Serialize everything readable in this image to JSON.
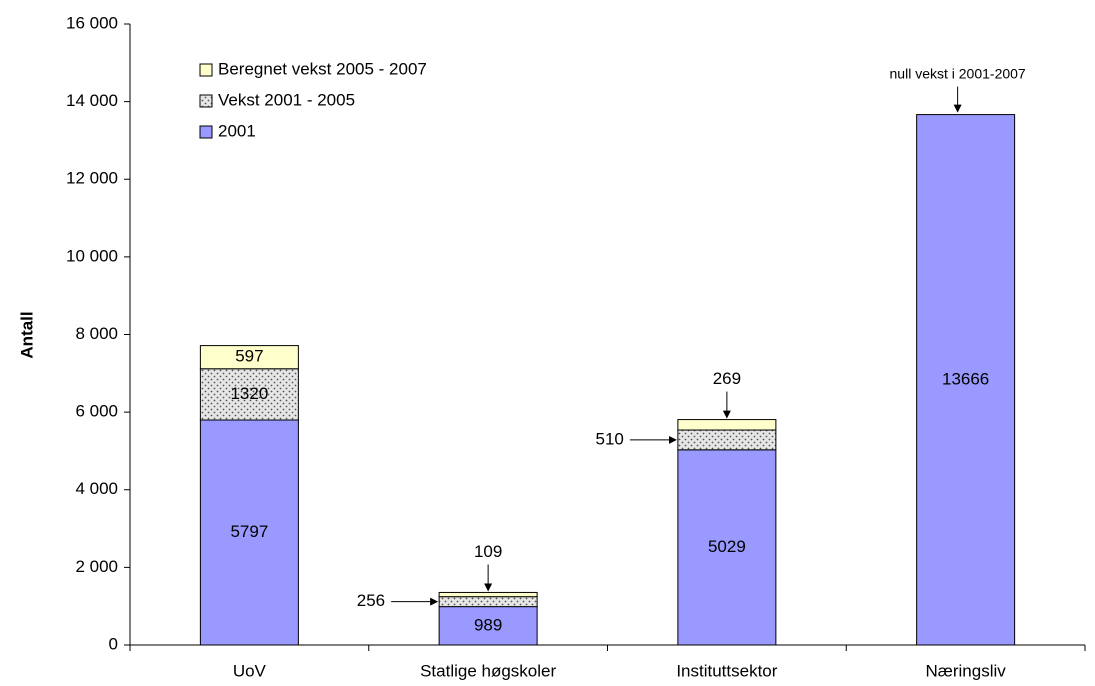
{
  "chart_data": {
    "type": "stacked_bar",
    "y_label": "Antall",
    "categories": [
      "UoV",
      "Statlige høgskoler",
      "Instituttsektor",
      "Næringsliv"
    ],
    "series": [
      {
        "name": "2001",
        "color": "#9999ff",
        "values": [
          5797,
          989,
          5029,
          13666
        ]
      },
      {
        "name": "Vekst 2001 - 2005",
        "color": "#e6e6e6",
        "values": [
          1320,
          256,
          510,
          0
        ]
      },
      {
        "name": "Beregnet vekst 2005 - 2007",
        "color": "#ffffcc",
        "values": [
          597,
          109,
          269,
          0
        ]
      }
    ],
    "annotation": "null vekst i 2001-2007",
    "ylim": [
      0,
      16000
    ],
    "yticks": [
      0,
      {
        "value": 2000,
        "label": "2 000"
      },
      {
        "value": 4000,
        "label": "4 000"
      },
      {
        "value": 6000,
        "label": "6 000"
      },
      {
        "value": 8000,
        "label": "8 000"
      },
      {
        "value": 10000,
        "label": "10 000"
      },
      {
        "value": 12000,
        "label": "12 000"
      },
      {
        "value": 14000,
        "label": "14 000"
      },
      {
        "value": 16000,
        "label": "16 000"
      }
    ],
    "legend": "upper left"
  }
}
